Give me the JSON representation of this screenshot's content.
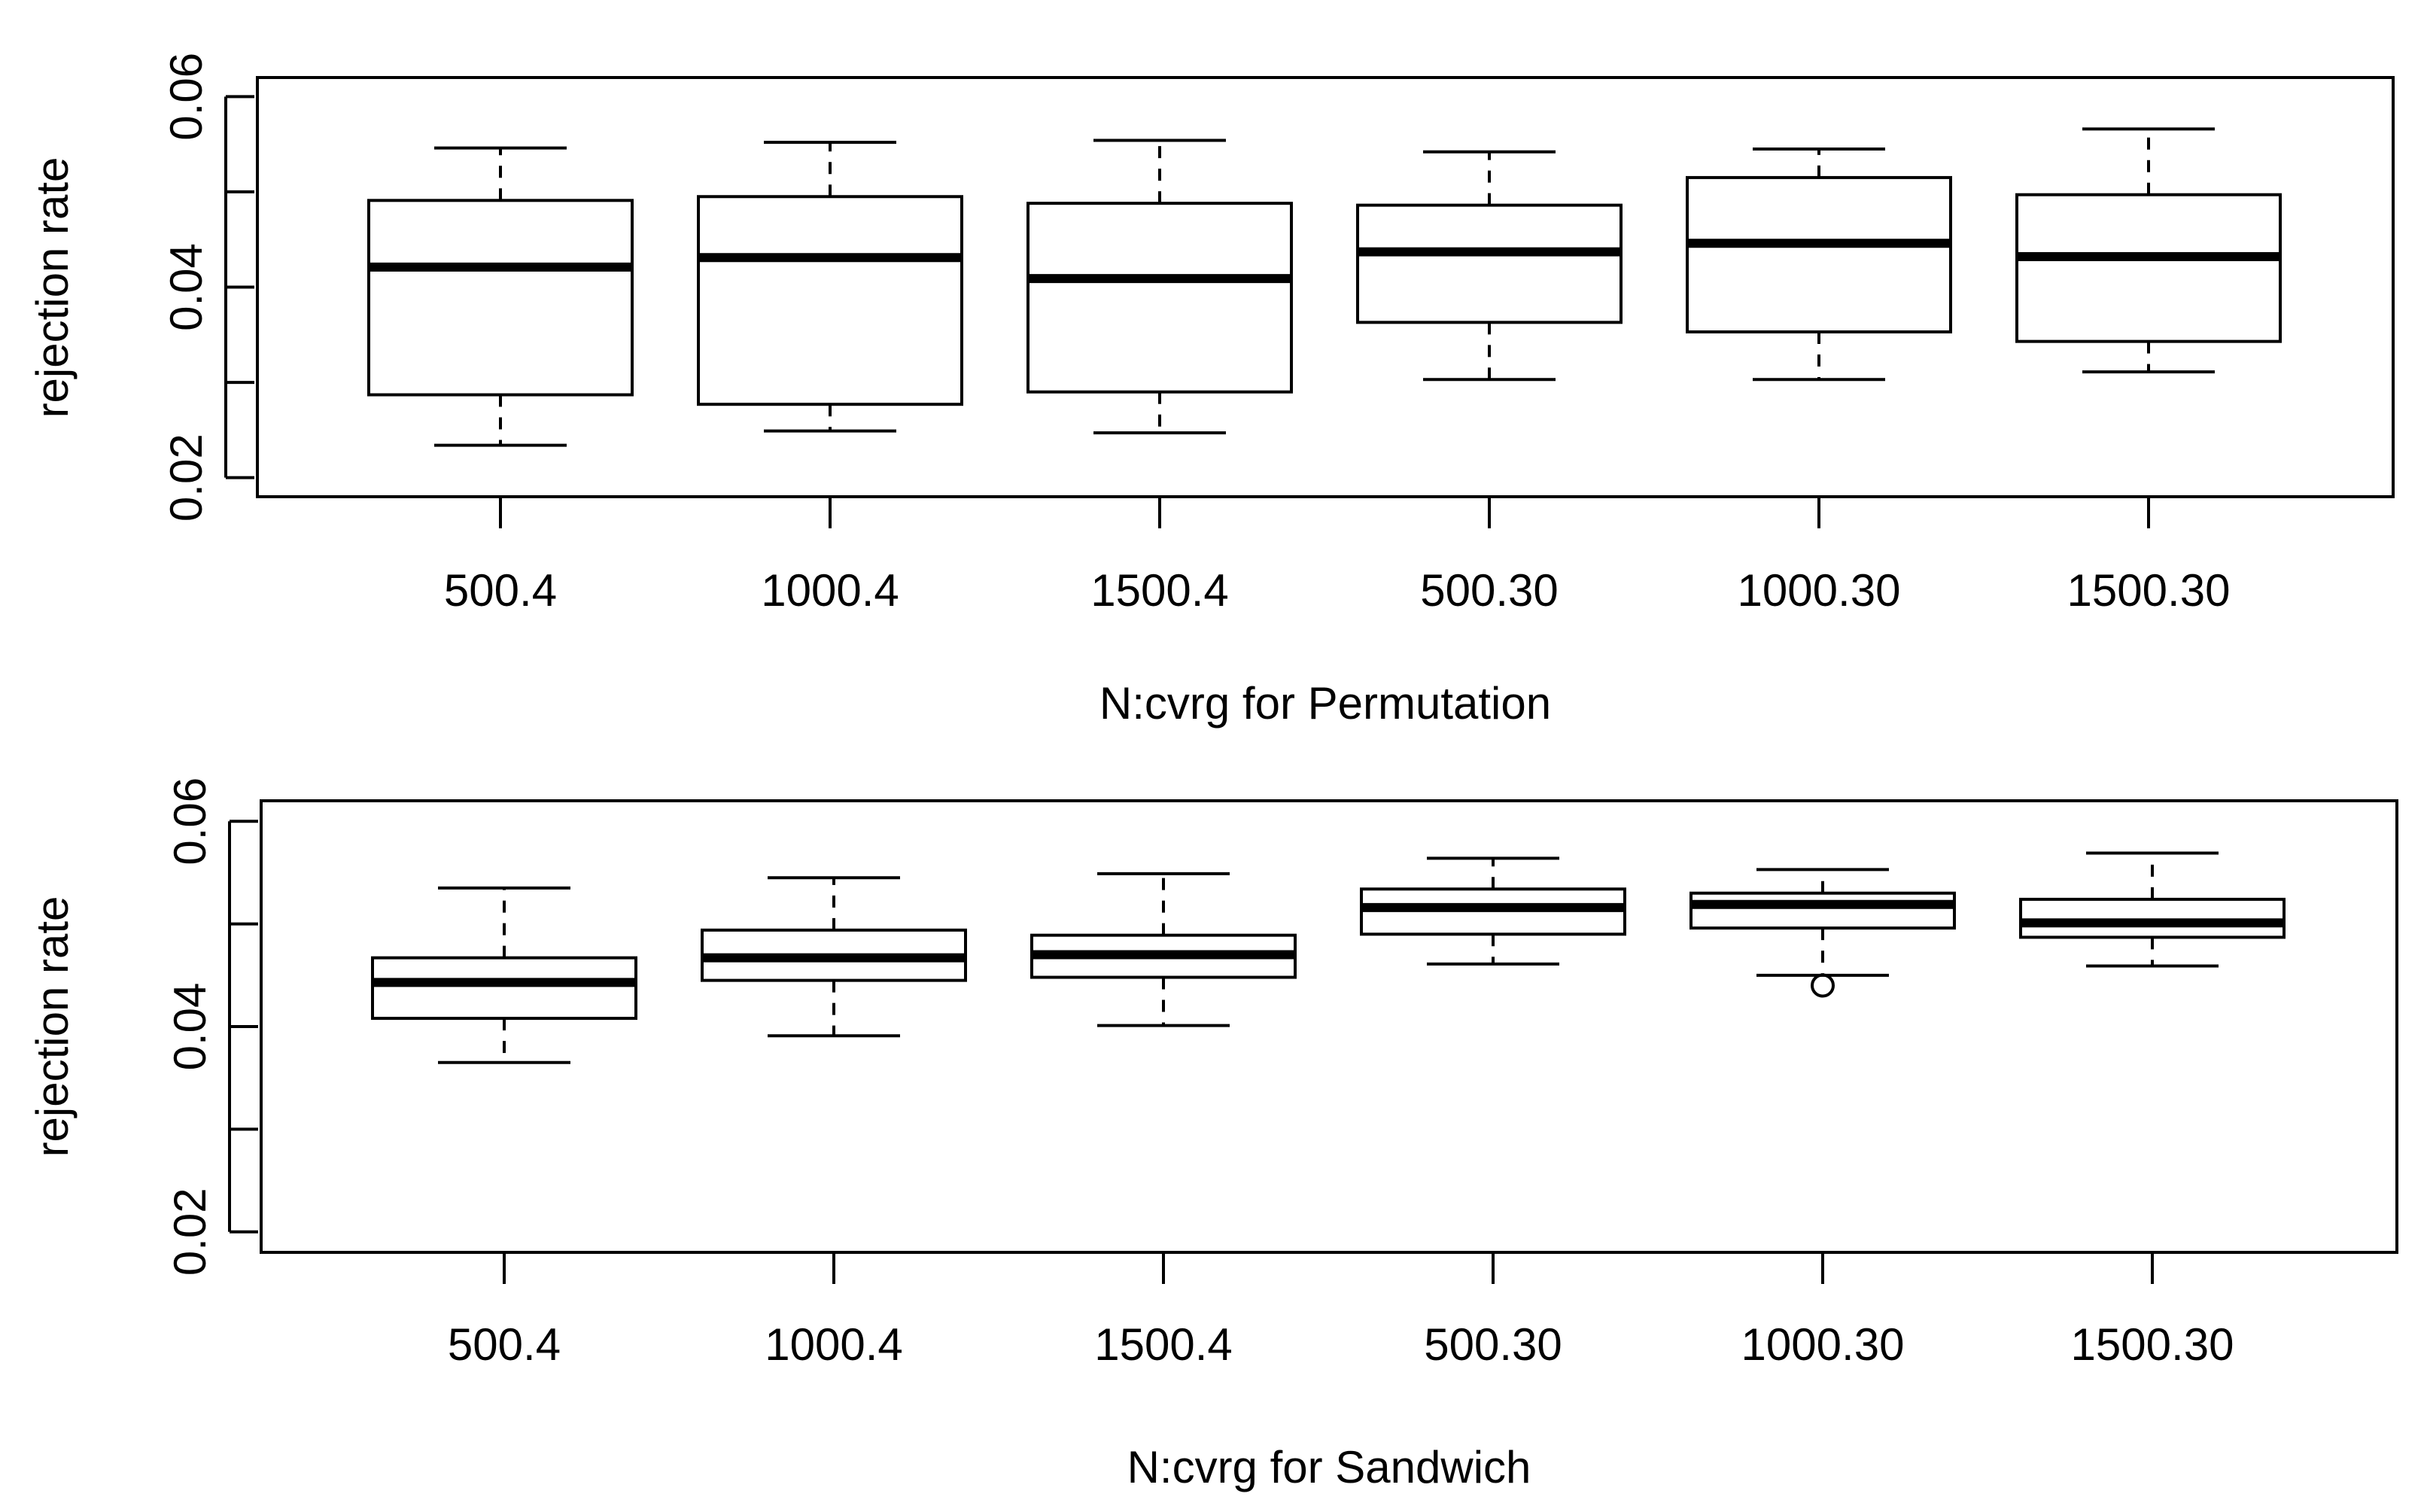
{
  "chart_data": [
    {
      "type": "box",
      "panel": "top",
      "xlabel": "N:cvrg for Permutation",
      "ylabel": "rejection rate",
      "ylim": [
        0.018,
        0.062
      ],
      "yticks": [
        0.02,
        0.03,
        0.04,
        0.05,
        0.06
      ],
      "ytick_labels": [
        "0.02",
        "0.04",
        "0.06"
      ],
      "categories": [
        "500.4",
        "1000.4",
        "1500.4",
        "500.30",
        "1000.30",
        "1500.30"
      ],
      "boxes": [
        {
          "min": 0.0234,
          "q1": 0.0287,
          "median": 0.0421,
          "q3": 0.0491,
          "max": 0.0546,
          "outliers": []
        },
        {
          "min": 0.0249,
          "q1": 0.0277,
          "median": 0.0431,
          "q3": 0.0495,
          "max": 0.0552,
          "outliers": []
        },
        {
          "min": 0.0247,
          "q1": 0.029,
          "median": 0.0409,
          "q3": 0.0488,
          "max": 0.0554,
          "outliers": []
        },
        {
          "min": 0.0303,
          "q1": 0.0363,
          "median": 0.0437,
          "q3": 0.0486,
          "max": 0.0542,
          "outliers": []
        },
        {
          "min": 0.0303,
          "q1": 0.0353,
          "median": 0.0446,
          "q3": 0.0515,
          "max": 0.0545,
          "outliers": []
        },
        {
          "min": 0.0311,
          "q1": 0.0343,
          "median": 0.0432,
          "q3": 0.0497,
          "max": 0.0566,
          "outliers": []
        }
      ]
    },
    {
      "type": "box",
      "panel": "bottom",
      "xlabel": "N:cvrg for Sandwich",
      "ylabel": "rejection rate",
      "ylim": [
        0.018,
        0.062
      ],
      "yticks": [
        0.02,
        0.03,
        0.04,
        0.05,
        0.06
      ],
      "ytick_labels": [
        "0.02",
        "0.04",
        "0.06"
      ],
      "categories": [
        "500.4",
        "1000.4",
        "1500.4",
        "500.30",
        "1000.30",
        "1500.30"
      ],
      "boxes": [
        {
          "min": 0.0365,
          "q1": 0.0408,
          "median": 0.0443,
          "q3": 0.0467,
          "max": 0.0535,
          "outliers": []
        },
        {
          "min": 0.0391,
          "q1": 0.0445,
          "median": 0.0467,
          "q3": 0.0494,
          "max": 0.0545,
          "outliers": []
        },
        {
          "min": 0.0401,
          "q1": 0.0448,
          "median": 0.047,
          "q3": 0.0489,
          "max": 0.0549,
          "outliers": []
        },
        {
          "min": 0.0461,
          "q1": 0.049,
          "median": 0.0516,
          "q3": 0.0534,
          "max": 0.0564,
          "outliers": []
        },
        {
          "min": 0.045,
          "q1": 0.0496,
          "median": 0.0519,
          "q3": 0.053,
          "max": 0.0553,
          "outliers": [
            0.044
          ]
        },
        {
          "min": 0.0459,
          "q1": 0.0487,
          "median": 0.0501,
          "q3": 0.0524,
          "max": 0.0569,
          "outliers": []
        }
      ]
    }
  ]
}
